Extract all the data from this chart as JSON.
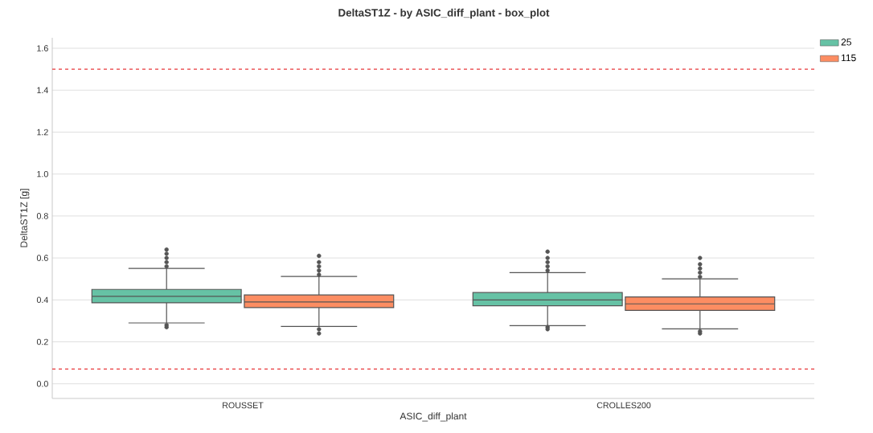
{
  "chart_data": {
    "type": "box",
    "title": "DeltaST1Z - by ASIC_diff_plant - box_plot",
    "xlabel": "ASIC_diff_plant",
    "ylabel": "DeltaST1Z [g]",
    "categories": [
      "ROUSSET",
      "CROLLES200"
    ],
    "series": [
      {
        "name": "25",
        "color": "#66c2a5",
        "boxes": [
          {
            "low": 0.29,
            "q1": 0.386,
            "median": 0.417,
            "q3": 0.45,
            "high": 0.55,
            "outliers": [
              0.56,
              0.58,
              0.6,
              0.62,
              0.64,
              0.28,
              0.27
            ]
          },
          {
            "low": 0.277,
            "q1": 0.372,
            "median": 0.4,
            "q3": 0.435,
            "high": 0.53,
            "outliers": [
              0.54,
              0.56,
              0.58,
              0.6,
              0.63,
              0.27,
              0.26
            ]
          }
        ]
      },
      {
        "name": "115",
        "color": "#fc8d62",
        "boxes": [
          {
            "low": 0.273,
            "q1": 0.363,
            "median": 0.39,
            "q3": 0.424,
            "high": 0.512,
            "outliers": [
              0.52,
              0.54,
              0.56,
              0.58,
              0.61,
              0.26,
              0.24
            ]
          },
          {
            "low": 0.262,
            "q1": 0.35,
            "median": 0.381,
            "q3": 0.414,
            "high": 0.5,
            "outliers": [
              0.51,
              0.53,
              0.55,
              0.57,
              0.6,
              0.25,
              0.24
            ]
          }
        ]
      }
    ],
    "ylim": [
      -0.07,
      1.65
    ],
    "yticks": [
      {
        "value": 0,
        "label": "0.0"
      },
      0.2,
      0.4,
      0.6,
      0.8,
      {
        "value": 1,
        "label": "1.0"
      },
      1.2,
      1.4,
      1.6
    ],
    "ref_lines": [
      {
        "axis": "y",
        "value": 1.5,
        "color": "#e8383b",
        "line_style": "dashed"
      },
      {
        "axis": "y",
        "value": 0.07,
        "color": "#e8383b",
        "line_style": "dashed"
      }
    ],
    "grid": "y",
    "legend": "top right",
    "marker": "circle"
  }
}
